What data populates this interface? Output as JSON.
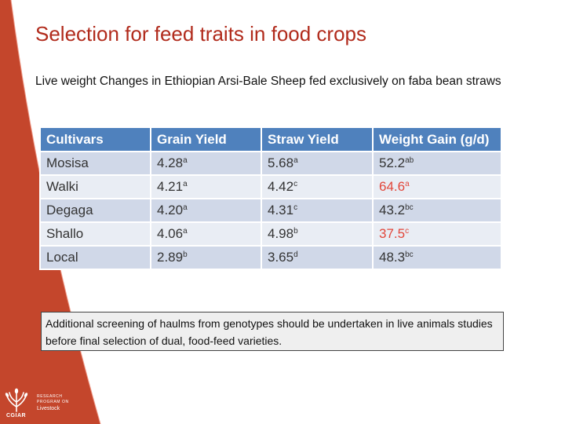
{
  "slide": {
    "title": "Selection for feed traits in food crops",
    "subtitle": "Live weight Changes in Ethiopian Arsi-Bale Sheep fed exclusively on faba bean straws",
    "note": "Additional  screening of haulms from genotypes should be undertaken in live animals studies before final selection of dual, food-feed varieties.",
    "colors": {
      "title": "#b12b1c",
      "side_band": "#c4462c",
      "header_fill": "#4f81bd",
      "row_odd": "#d0d8e8",
      "row_even": "#e9edf4",
      "highlight_text": "#e2463a"
    }
  },
  "table": {
    "headers": [
      "Cultivars",
      "Grain Yield",
      "Straw Yield",
      "Weight Gain (g/d)"
    ],
    "rows": [
      {
        "cultivar": "Mosisa",
        "grain": {
          "value": "4.28",
          "sup": "a"
        },
        "straw": {
          "value": "5.68",
          "sup": "a"
        },
        "gain": {
          "value": "52.2",
          "sup": "ab",
          "highlight": false
        }
      },
      {
        "cultivar": "Walki",
        "grain": {
          "value": "4.21",
          "sup": "a"
        },
        "straw": {
          "value": "4.42",
          "sup": "c"
        },
        "gain": {
          "value": "64.6",
          "sup": "a",
          "highlight": true
        }
      },
      {
        "cultivar": "Degaga",
        "grain": {
          "value": "4.20",
          "sup": "a"
        },
        "straw": {
          "value": "4.31",
          "sup": "c"
        },
        "gain": {
          "value": "43.2",
          "sup": "bc",
          "highlight": false
        }
      },
      {
        "cultivar": "Shallo",
        "grain": {
          "value": "4.06",
          "sup": "a"
        },
        "straw": {
          "value": "4.98",
          "sup": "b"
        },
        "gain": {
          "value": "37.5",
          "sup": "c",
          "highlight": true
        }
      },
      {
        "cultivar": "Local",
        "grain": {
          "value": "2.89",
          "sup": "b"
        },
        "straw": {
          "value": "3.65",
          "sup": "d"
        },
        "gain": {
          "value": "48.3",
          "sup": "bc",
          "highlight": false
        }
      }
    ]
  },
  "logo": {
    "icon": "wheat-sheaf-icon",
    "org": "CGIAR",
    "lines": [
      "RESEARCH",
      "PROGRAM ON"
    ],
    "program": "Livestock"
  }
}
